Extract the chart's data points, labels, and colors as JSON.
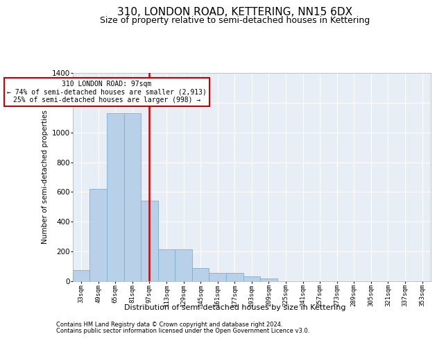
{
  "title1": "310, LONDON ROAD, KETTERING, NN15 6DX",
  "title2": "Size of property relative to semi-detached houses in Kettering",
  "xlabel": "Distribution of semi-detached houses by size in Kettering",
  "ylabel": "Number of semi-detached properties",
  "footer1": "Contains HM Land Registry data © Crown copyright and database right 2024.",
  "footer2": "Contains public sector information licensed under the Open Government Licence v3.0.",
  "annotation_title": "310 LONDON ROAD: 97sqm",
  "annotation_line1": "← 74% of semi-detached houses are smaller (2,913)",
  "annotation_line2": "25% of semi-detached houses are larger (998) →",
  "property_size_label": "97sqm",
  "bar_color": "#b8d0e8",
  "bar_edge_color": "#7aafd4",
  "redline_color": "#cc0000",
  "annotation_box_edgecolor": "#cc0000",
  "bg_color": "#e8eef5",
  "ylim": [
    0,
    1400
  ],
  "yticks": [
    0,
    200,
    400,
    600,
    800,
    1000,
    1200,
    1400
  ],
  "categories": [
    "33sqm",
    "49sqm",
    "65sqm",
    "81sqm",
    "97sqm",
    "113sqm",
    "129sqm",
    "145sqm",
    "161sqm",
    "177sqm",
    "193sqm",
    "209sqm",
    "225sqm",
    "241sqm",
    "257sqm",
    "273sqm",
    "289sqm",
    "305sqm",
    "321sqm",
    "337sqm",
    "353sqm"
  ],
  "values": [
    75,
    620,
    1130,
    1130,
    540,
    215,
    215,
    90,
    55,
    55,
    35,
    20,
    0,
    0,
    0,
    0,
    0,
    0,
    0,
    0,
    0
  ],
  "grid_color": "#ffffff",
  "title1_fontsize": 11,
  "title2_fontsize": 9,
  "annotation_fontsize": 7,
  "ylabel_fontsize": 7.5,
  "xlabel_fontsize": 8,
  "ytick_fontsize": 7.5,
  "xtick_fontsize": 6.5,
  "footer_fontsize": 6
}
